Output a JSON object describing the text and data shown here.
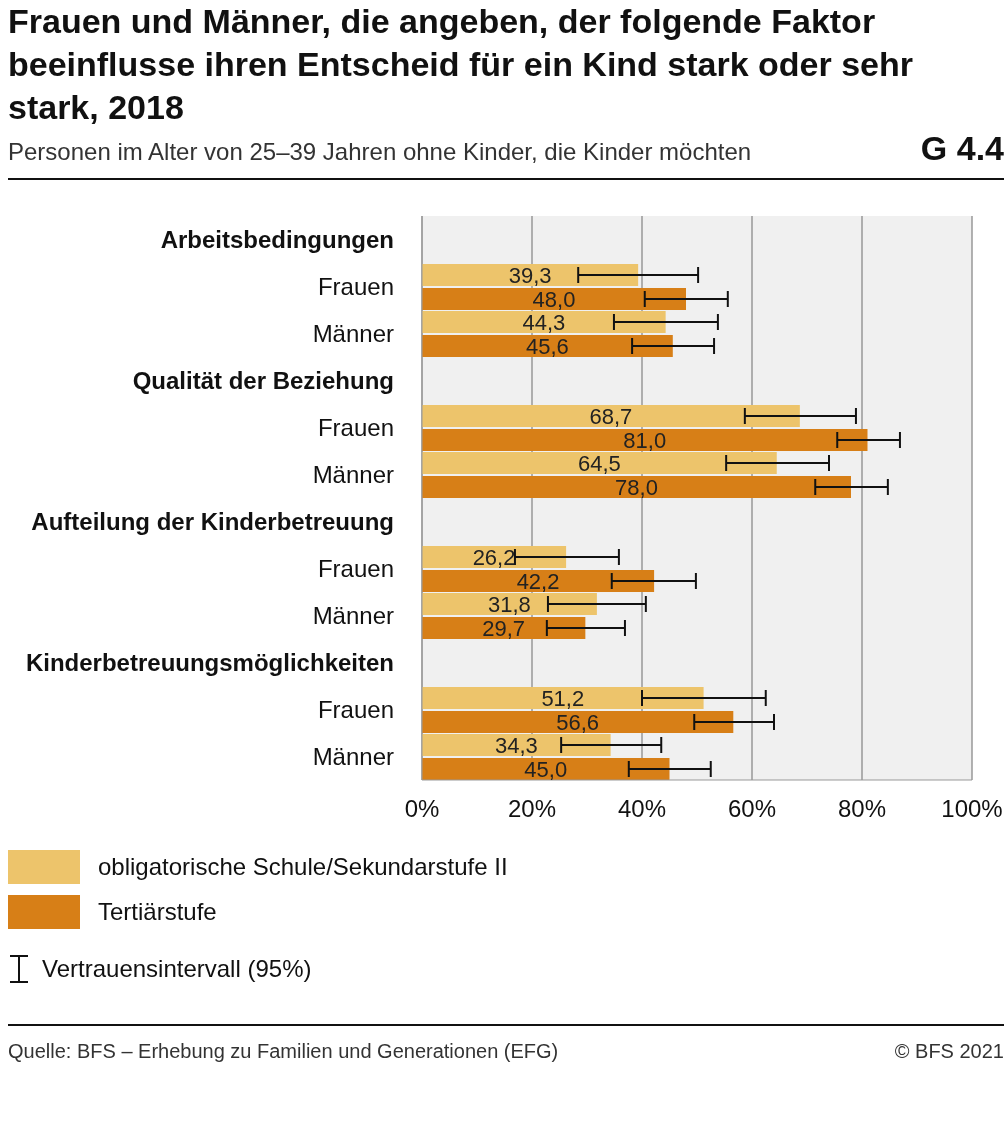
{
  "chart_data": {
    "type": "bar",
    "orientation": "horizontal",
    "title": "Frauen und Männer, die angeben, der folgende Faktor beeinflusse ihren Entscheid für ein Kind stark oder sehr stark, 2018",
    "subtitle": "Personen im Alter von 25–39 Jahren ohne Kinder, die Kinder möchten",
    "categories": [
      "Arbeitsbedingungen",
      "Frauen",
      "Männer",
      "Qualität der Beziehung",
      "Frauen",
      "Männer",
      "Aufteilung der Kinderbetreuung",
      "Frauen",
      "Männer",
      "Kinderbetreuungsmöglichkeiten",
      "Frauen",
      "Männer"
    ],
    "series": [
      {
        "name": "obligatorische Schule/Sekundarstufe II",
        "color": "#edc46b",
        "values": [
          null,
          39.3,
          44.3,
          null,
          68.7,
          64.5,
          null,
          26.2,
          31.8,
          null,
          51.2,
          34.3
        ],
        "value_labels": [
          null,
          "39,3",
          "44,3",
          null,
          "68,7",
          "64,5",
          null,
          "26,2",
          "31,8",
          null,
          "51,2",
          "34,3"
        ],
        "errors": [
          null,
          [
            28.4,
            50.2
          ],
          [
            34.9,
            53.8
          ],
          null,
          [
            58.7,
            78.9
          ],
          [
            55.3,
            74.0
          ],
          null,
          [
            16.9,
            35.8
          ],
          [
            22.9,
            40.7
          ],
          null,
          [
            40.0,
            62.5
          ],
          [
            25.3,
            43.5
          ]
        ]
      },
      {
        "name": "Tertiärstufe",
        "color": "#d77f17",
        "values": [
          null,
          48.0,
          45.6,
          null,
          81.0,
          78.0,
          null,
          42.2,
          29.7,
          null,
          56.6,
          45.0
        ],
        "value_labels": [
          null,
          "48,0",
          "45,6",
          null,
          "81,0",
          "78,0",
          null,
          "42,2",
          "29,7",
          null,
          "56,6",
          "45,0"
        ],
        "errors": [
          null,
          [
            40.5,
            55.6
          ],
          [
            38.2,
            53.1
          ],
          null,
          [
            75.5,
            86.9
          ],
          [
            71.5,
            84.7
          ],
          null,
          [
            34.5,
            49.8
          ],
          [
            22.7,
            36.9
          ],
          null,
          [
            49.5,
            64.0
          ],
          [
            37.6,
            52.5
          ]
        ]
      }
    ],
    "xlim": [
      0,
      100
    ],
    "xticks": [
      {
        "value": 0,
        "label": "0%"
      },
      {
        "value": 20,
        "label": "20%"
      },
      {
        "value": 40,
        "label": "40%"
      },
      {
        "value": 60,
        "label": "60%"
      },
      {
        "value": 80,
        "label": "80%"
      },
      {
        "value": 100,
        "label": "100%"
      }
    ],
    "grid": "x",
    "legend": "bottom",
    "annotations": [
      "G 4.4",
      "Vertrauensintervall (95%)",
      "Quelle: BFS – Erhebung zu Familien und Generationen (EFG)",
      "© BFS 2021"
    ]
  }
}
